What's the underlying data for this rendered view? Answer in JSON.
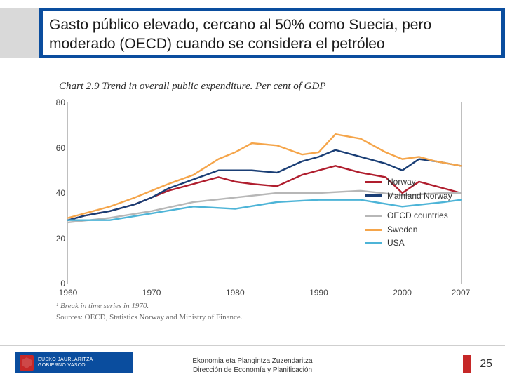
{
  "header": {
    "title": "Gasto público elevado, cercano al 50% como Suecia, pero moderado (OECD) cuando se considera el petróleo",
    "grey_color": "#d9d9d9",
    "blue_color": "#0a4d9e",
    "text_color": "#1a1a1a",
    "title_fontsize": 21
  },
  "chart": {
    "type": "line",
    "title": "Chart 2.9 Trend in overall public expenditure. Per cent of GDP",
    "title_fontsize": 15,
    "title_fontfamily": "Georgia",
    "title_fontstyle": "italic",
    "title_color": "#2b2b2b",
    "background_color": "#ffffff",
    "border_color": "#bfbfbf",
    "x": {
      "min": 1960,
      "max": 2007,
      "ticks": [
        1960,
        1970,
        1980,
        1990,
        2000,
        2007
      ],
      "label_fontsize": 12,
      "label_color": "#444444"
    },
    "y": {
      "min": 0,
      "max": 80,
      "ticks": [
        0,
        20,
        40,
        60,
        80
      ],
      "label_fontsize": 12,
      "label_color": "#444444"
    },
    "line_width": 2.4,
    "legend": {
      "position": "inside-right",
      "fontsize": 12,
      "text_color": "#333333"
    },
    "series": [
      {
        "name": "Norway",
        "color": "#b01e2e",
        "x": [
          1960,
          1962,
          1965,
          1968,
          1970,
          1972,
          1975,
          1978,
          1980,
          1982,
          1985,
          1988,
          1990,
          1992,
          1995,
          1998,
          2000,
          2002,
          2004,
          2007
        ],
        "y": [
          28,
          30,
          32,
          35,
          38,
          41,
          44,
          47,
          45,
          44,
          43,
          48,
          50,
          52,
          49,
          47,
          40,
          45,
          43,
          40
        ]
      },
      {
        "name": "Mainland Norway",
        "color": "#1a3e75",
        "x": [
          1960,
          1962,
          1965,
          1968,
          1970,
          1972,
          1975,
          1978,
          1980,
          1982,
          1985,
          1988,
          1990,
          1992,
          1995,
          1998,
          2000,
          2002,
          2004,
          2007
        ],
        "y": [
          28,
          30,
          32,
          35,
          38,
          42,
          46,
          50,
          50,
          50,
          49,
          54,
          56,
          59,
          56,
          53,
          50,
          55,
          54,
          52
        ]
      },
      {
        "name": "OECD countries",
        "color": "#b7b7b7",
        "x": [
          1960,
          1965,
          1970,
          1975,
          1980,
          1985,
          1990,
          1995,
          2000,
          2005,
          2007
        ],
        "y": [
          27,
          29,
          32,
          36,
          38,
          40,
          40,
          41,
          39,
          40,
          40
        ]
      },
      {
        "name": "Sweden",
        "color": "#f5a54a",
        "x": [
          1960,
          1962,
          1965,
          1968,
          1970,
          1972,
          1975,
          1978,
          1980,
          1982,
          1985,
          1988,
          1990,
          1992,
          1995,
          1998,
          2000,
          2002,
          2004,
          2007
        ],
        "y": [
          29,
          31,
          34,
          38,
          41,
          44,
          48,
          55,
          58,
          62,
          61,
          57,
          58,
          66,
          64,
          58,
          55,
          56,
          54,
          52
        ]
      },
      {
        "name": "USA",
        "color": "#4db4d7",
        "x": [
          1960,
          1965,
          1970,
          1975,
          1980,
          1985,
          1990,
          1995,
          2000,
          2005,
          2007
        ],
        "y": [
          28,
          28,
          31,
          34,
          33,
          36,
          37,
          37,
          34,
          36,
          37
        ]
      }
    ]
  },
  "notes": {
    "footnote": "¹ Break in time series in 1970.",
    "sources": "Sources: OECD, Statistics Norway and Ministry of Finance.",
    "fontsize": 11,
    "color": "#6a6a6a"
  },
  "footer": {
    "logo_line1": "EUSKO JAURLARITZA",
    "logo_line2": "GOBIERNO VASCO",
    "logo_bg": "#0a4d9e",
    "center_line1": "Ekonomia eta Plangintza Zuzendaritza",
    "center_line2": "Dirección de Economía y Planificación",
    "accent_color": "#c62828",
    "page_number": "25"
  }
}
